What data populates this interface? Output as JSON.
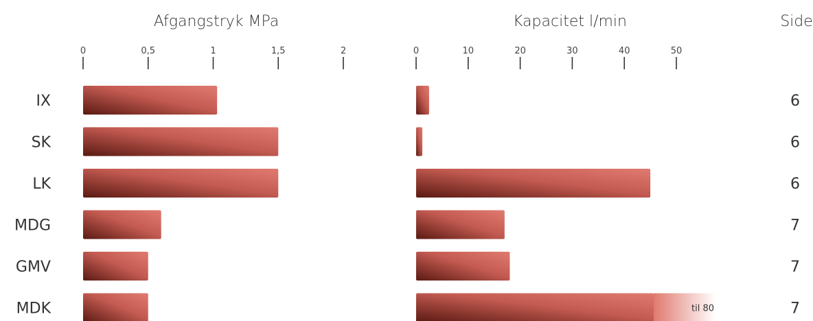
{
  "chart_data": {
    "type": "bar",
    "categories": [
      "IX",
      "SK",
      "LK",
      "MDG",
      "GMV",
      "MDK"
    ],
    "series": [
      {
        "name": "Afgangstryk MPa",
        "values": [
          1.03,
          1.5,
          1.5,
          0.6,
          0.5,
          0.5
        ],
        "xlim": [
          0,
          2
        ],
        "ticks": [
          0,
          0.5,
          1,
          1.5,
          2
        ],
        "tick_labels": [
          "0",
          "0,5",
          "1",
          "1,5",
          "2"
        ]
      },
      {
        "name": "Kapacitet l/min",
        "values": [
          2.5,
          1.2,
          45,
          17,
          18,
          55
        ],
        "xlim": [
          0,
          50
        ],
        "ticks": [
          0,
          10,
          20,
          30,
          40,
          50
        ],
        "tick_labels": [
          "0",
          "10",
          "20",
          "30",
          "40",
          "50"
        ],
        "annotations": [
          {
            "category": "MDK",
            "text": "til 80"
          }
        ]
      }
    ],
    "page_column": {
      "header": "Side",
      "values": [
        "6",
        "6",
        "6",
        "7",
        "7",
        "7"
      ]
    },
    "colors": {
      "bar_dark": "#5a1a12",
      "bar_light": "#e07a70",
      "axis": "#333333"
    },
    "grid": false,
    "legend": "none"
  }
}
